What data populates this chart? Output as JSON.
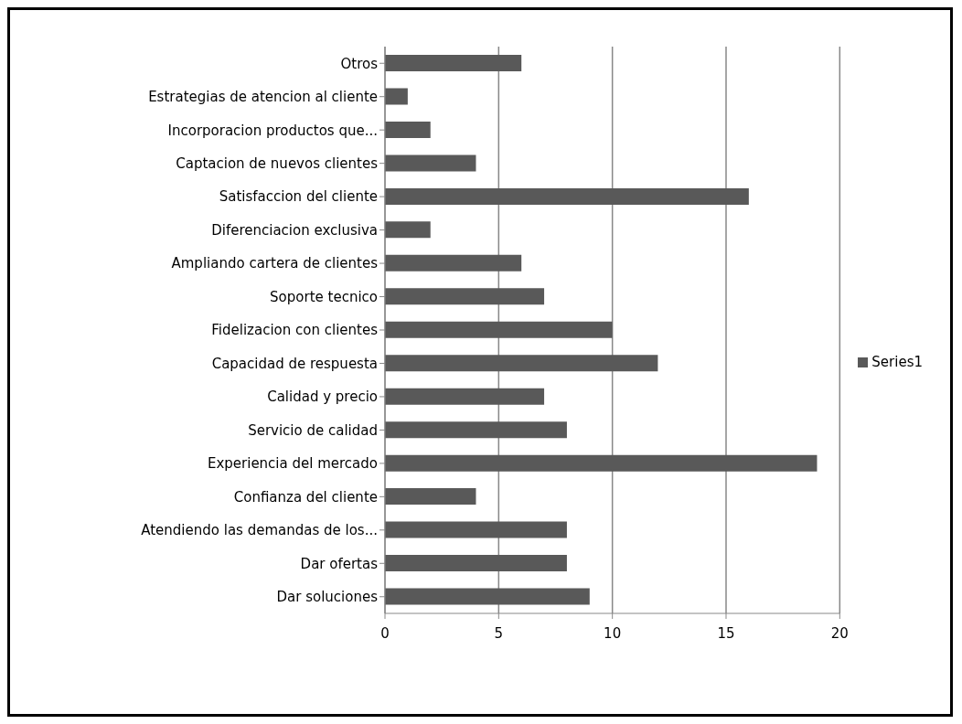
{
  "chart_data": {
    "type": "bar",
    "orientation": "horizontal",
    "categories": [
      "Otros",
      "Estrategias de atencion al cliente",
      "Incorporacion productos que...",
      "Captacion de nuevos clientes",
      "Satisfaccion del cliente",
      "Diferenciacion exclusiva",
      "Ampliando cartera de clientes",
      "Soporte tecnico",
      "Fidelizacion con clientes",
      "Capacidad de respuesta",
      "Calidad y precio",
      "Servicio de calidad",
      "Experiencia del mercado",
      "Confianza del cliente",
      "Atendiendo las demandas  de los...",
      "Dar ofertas",
      "Dar soluciones"
    ],
    "series": [
      {
        "name": "Series1",
        "color": "#595959",
        "values": [
          6,
          1,
          2,
          4,
          16,
          2,
          6,
          7,
          10,
          12,
          7,
          8,
          19,
          4,
          8,
          8,
          9
        ]
      }
    ],
    "xlim": [
      0,
      20
    ],
    "xticks": [
      0,
      5,
      10,
      15,
      20
    ],
    "grid": "x",
    "legend": "right"
  }
}
